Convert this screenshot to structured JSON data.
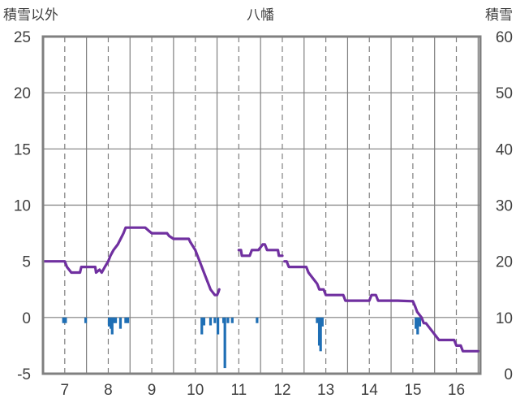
{
  "chart_data": {
    "type": "line",
    "title": "八幡",
    "left_axis_label": "積雪以外",
    "right_axis_label": "積雪",
    "left_ylim": [
      -5,
      25
    ],
    "left_yticks": [
      "25",
      "20",
      "15",
      "10",
      "5",
      "0",
      "-5"
    ],
    "right_ylim": [
      0,
      60
    ],
    "right_yticks": [
      "60",
      "50",
      "40",
      "30",
      "20",
      "10",
      "0"
    ],
    "xlim": [
      6.5,
      16.55
    ],
    "xticks": [
      "7",
      "8",
      "9",
      "10",
      "11",
      "12",
      "13",
      "14",
      "15",
      "16"
    ],
    "grid": true,
    "colors": {
      "snow_line": "#7030A0",
      "bars": "#1F6FB5",
      "frame": "#808080",
      "grid": "#7F7F7F"
    },
    "snow_depth_segments": [
      [
        [
          6.5,
          20
        ],
        [
          7.0,
          20
        ],
        [
          7.05,
          19
        ],
        [
          7.15,
          18
        ],
        [
          7.35,
          18
        ],
        [
          7.38,
          19
        ],
        [
          7.7,
          19
        ],
        [
          7.72,
          18
        ],
        [
          7.8,
          18.5
        ],
        [
          7.85,
          18
        ],
        [
          7.92,
          19
        ],
        [
          8.0,
          20
        ],
        [
          8.05,
          21
        ],
        [
          8.12,
          22
        ],
        [
          8.22,
          23
        ],
        [
          8.35,
          25
        ],
        [
          8.4,
          26
        ],
        [
          8.5,
          26
        ],
        [
          8.7,
          26
        ],
        [
          8.85,
          26
        ],
        [
          8.92,
          25.5
        ],
        [
          9.0,
          25
        ],
        [
          9.15,
          25
        ],
        [
          9.35,
          25
        ],
        [
          9.4,
          24.5
        ],
        [
          9.5,
          24
        ],
        [
          9.85,
          24
        ],
        [
          9.88,
          23.5
        ],
        [
          10.0,
          22
        ],
        [
          10.05,
          21
        ],
        [
          10.1,
          20
        ],
        [
          10.2,
          18
        ],
        [
          10.3,
          16
        ],
        [
          10.35,
          15
        ],
        [
          10.45,
          14
        ],
        [
          10.5,
          14
        ],
        [
          10.53,
          14.5
        ],
        [
          10.55,
          15
        ]
      ],
      [
        [
          11.0,
          22
        ],
        [
          11.05,
          22
        ],
        [
          11.07,
          21
        ],
        [
          11.25,
          21
        ],
        [
          11.3,
          22
        ],
        [
          11.45,
          22
        ],
        [
          11.5,
          22.5
        ],
        [
          11.55,
          23
        ],
        [
          11.6,
          23
        ],
        [
          11.65,
          22
        ],
        [
          11.9,
          22
        ],
        [
          11.92,
          21
        ],
        [
          12.0,
          21
        ]
      ],
      [
        [
          12.05,
          20
        ],
        [
          12.1,
          20
        ],
        [
          12.15,
          19
        ],
        [
          12.55,
          19
        ],
        [
          12.6,
          18
        ],
        [
          12.7,
          17
        ],
        [
          12.8,
          16
        ],
        [
          12.85,
          15
        ],
        [
          12.95,
          15
        ],
        [
          13.0,
          14
        ],
        [
          13.4,
          14
        ],
        [
          13.45,
          13
        ],
        [
          14.0,
          13
        ],
        [
          14.05,
          14
        ],
        [
          14.15,
          14
        ],
        [
          14.2,
          13
        ],
        [
          14.6,
          13
        ],
        [
          14.65,
          13
        ],
        [
          15.0,
          12.9
        ],
        [
          15.05,
          12
        ],
        [
          15.1,
          11
        ],
        [
          15.2,
          10
        ],
        [
          15.25,
          9
        ],
        [
          15.3,
          9
        ],
        [
          15.4,
          8
        ],
        [
          15.5,
          7
        ],
        [
          15.6,
          6
        ],
        [
          15.95,
          6
        ],
        [
          16.0,
          5
        ],
        [
          16.1,
          5
        ],
        [
          16.15,
          4
        ],
        [
          16.5,
          4
        ]
      ]
    ],
    "precip_bars": [
      [
        6.97,
        -0.5
      ],
      [
        7.02,
        -0.5
      ],
      [
        7.48,
        -0.5
      ],
      [
        8.02,
        -0.8
      ],
      [
        8.06,
        -1.0
      ],
      [
        8.09,
        -1.5
      ],
      [
        8.13,
        -0.5
      ],
      [
        8.17,
        -0.5
      ],
      [
        8.28,
        -1.0
      ],
      [
        8.4,
        -0.5
      ],
      [
        8.45,
        -0.5
      ],
      [
        10.15,
        -1.5
      ],
      [
        10.2,
        -0.7
      ],
      [
        10.35,
        -0.7
      ],
      [
        10.45,
        -0.5
      ],
      [
        10.52,
        -1.5
      ],
      [
        10.65,
        -0.5
      ],
      [
        10.68,
        -4.5
      ],
      [
        10.75,
        -0.5
      ],
      [
        10.85,
        -0.5
      ],
      [
        11.42,
        -0.5
      ],
      [
        12.8,
        -0.5
      ],
      [
        12.85,
        -2.5
      ],
      [
        12.88,
        -3.0
      ],
      [
        12.92,
        -0.8
      ],
      [
        15.07,
        -1.0
      ],
      [
        15.11,
        -1.5
      ],
      [
        15.16,
        -0.8
      ]
    ]
  }
}
